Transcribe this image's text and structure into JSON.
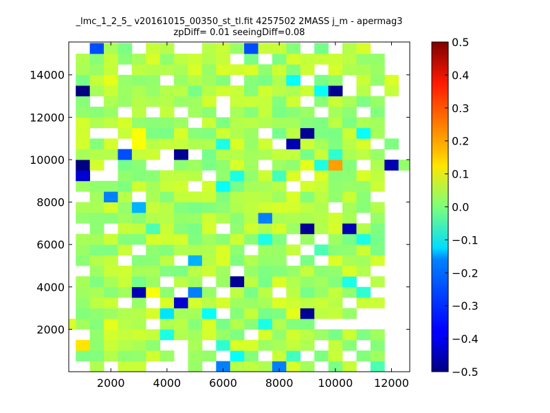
{
  "chart_data": {
    "type": "heatmap",
    "title_line1": "_lmc_1_2_5_ v20161015_00350_st_tl.fit 4257502 2MASS j_m - apermag3",
    "title_line2": "zpDiff= 0.01 seeingDiff=0.08",
    "xlabel": "",
    "ylabel": "",
    "xlim": [
      500,
      12650
    ],
    "ylim": [
      0,
      15550
    ],
    "x_ticks": [
      2000,
      4000,
      6000,
      8000,
      10000,
      12000
    ],
    "x_tick_labels": [
      "2000",
      "4000",
      "6000",
      "8000",
      "10000",
      "12000"
    ],
    "y_ticks": [
      2000,
      4000,
      6000,
      8000,
      10000,
      12000,
      14000
    ],
    "y_tick_labels": [
      "2000",
      "4000",
      "6000",
      "8000",
      "10000",
      "12000",
      "14000"
    ],
    "colormap": "jet",
    "clim": [
      -0.5,
      0.5
    ],
    "colorbar_ticks": [
      0.5,
      0.4,
      0.3,
      0.2,
      0.1,
      0.0,
      -0.1,
      -0.2,
      -0.3,
      -0.4,
      -0.5
    ],
    "colorbar_tick_labels": [
      "0.5",
      "0.4",
      "0.3",
      "0.2",
      "0.1",
      "0.0",
      "−0.1",
      "−0.2",
      "−0.3",
      "−0.4",
      "−0.5"
    ],
    "grid": false,
    "cell_size": 500,
    "background_value": 0.04,
    "missing_cells": [
      [
        500,
        15250
      ],
      [
        1000,
        15250
      ],
      [
        3000,
        15250
      ],
      [
        4500,
        15250
      ],
      [
        5000,
        15250
      ],
      [
        9000,
        15250
      ],
      [
        10000,
        15250
      ],
      [
        11500,
        15250
      ],
      [
        12000,
        15250
      ],
      [
        500,
        14750
      ],
      [
        6500,
        14750
      ],
      [
        7500,
        14750
      ],
      [
        12000,
        14750
      ],
      [
        500,
        14250
      ],
      [
        2500,
        14250
      ],
      [
        9500,
        14250
      ],
      [
        12000,
        14250
      ],
      [
        500,
        13750
      ],
      [
        4000,
        13750
      ],
      [
        6500,
        13750
      ],
      [
        9000,
        13750
      ],
      [
        10500,
        13750
      ],
      [
        500,
        13250
      ],
      [
        10500,
        13250
      ],
      [
        11500,
        13250
      ],
      [
        500,
        12750
      ],
      [
        1500,
        12750
      ],
      [
        6000,
        12750
      ],
      [
        9000,
        12750
      ],
      [
        12000,
        12750
      ],
      [
        500,
        12250
      ],
      [
        2500,
        12250
      ],
      [
        3500,
        12250
      ],
      [
        4500,
        12250
      ],
      [
        6000,
        12250
      ],
      [
        9500,
        12250
      ],
      [
        11000,
        12250
      ],
      [
        12000,
        12250
      ],
      [
        500,
        11750
      ],
      [
        5000,
        11750
      ],
      [
        12000,
        11750
      ],
      [
        500,
        11250
      ],
      [
        1500,
        11250
      ],
      [
        2000,
        11250
      ],
      [
        7500,
        11250
      ],
      [
        12000,
        11250
      ],
      [
        500,
        10750
      ],
      [
        2500,
        10750
      ],
      [
        8000,
        10750
      ],
      [
        11500,
        10750
      ],
      [
        500,
        10250
      ],
      [
        4000,
        10250
      ],
      [
        5000,
        10250
      ],
      [
        12000,
        10250
      ],
      [
        500,
        9750
      ],
      [
        2000,
        9750
      ],
      [
        3500,
        9750
      ],
      [
        4000,
        9750
      ],
      [
        7500,
        9750
      ],
      [
        11000,
        9750
      ],
      [
        500,
        9250
      ],
      [
        1500,
        9250
      ],
      [
        2000,
        9250
      ],
      [
        5500,
        9250
      ],
      [
        9000,
        9250
      ],
      [
        12000,
        9250
      ],
      [
        500,
        8750
      ],
      [
        5000,
        8750
      ],
      [
        8500,
        8750
      ],
      [
        12000,
        8750
      ],
      [
        500,
        8250
      ],
      [
        1000,
        8250
      ],
      [
        3000,
        8250
      ],
      [
        11500,
        8250
      ],
      [
        12000,
        8250
      ],
      [
        500,
        7750
      ],
      [
        10000,
        7750
      ],
      [
        12000,
        7750
      ],
      [
        500,
        7250
      ],
      [
        11000,
        7250
      ],
      [
        12000,
        7250
      ],
      [
        500,
        6750
      ],
      [
        1000,
        6750
      ],
      [
        2000,
        6750
      ],
      [
        6000,
        6750
      ],
      [
        12000,
        6750
      ],
      [
        500,
        6250
      ],
      [
        8500,
        6250
      ],
      [
        9500,
        6250
      ],
      [
        12000,
        6250
      ],
      [
        500,
        5750
      ],
      [
        3000,
        5750
      ],
      [
        7000,
        5750
      ],
      [
        9000,
        5750
      ],
      [
        12000,
        5750
      ],
      [
        500,
        5250
      ],
      [
        2500,
        5250
      ],
      [
        4500,
        5250
      ],
      [
        8500,
        5250
      ],
      [
        9500,
        5250
      ],
      [
        12000,
        5250
      ],
      [
        500,
        4750
      ],
      [
        1000,
        4750
      ],
      [
        6500,
        4750
      ],
      [
        11500,
        4750
      ],
      [
        12000,
        4750
      ],
      [
        500,
        4250
      ],
      [
        4000,
        4250
      ],
      [
        5500,
        4250
      ],
      [
        11000,
        4250
      ],
      [
        12000,
        4250
      ],
      [
        500,
        3750
      ],
      [
        4500,
        3750
      ],
      [
        6000,
        3750
      ],
      [
        8000,
        3750
      ],
      [
        11500,
        3750
      ],
      [
        12000,
        3750
      ],
      [
        500,
        3250
      ],
      [
        2500,
        3250
      ],
      [
        3500,
        3250
      ],
      [
        10500,
        3250
      ],
      [
        12000,
        3250
      ],
      [
        500,
        2750
      ],
      [
        6000,
        2750
      ],
      [
        11000,
        2750
      ],
      [
        11500,
        2750
      ],
      [
        12000,
        2750
      ],
      [
        3500,
        2250
      ],
      [
        9500,
        2250
      ],
      [
        10000,
        2250
      ],
      [
        10500,
        2250
      ],
      [
        11000,
        2250
      ],
      [
        11500,
        2250
      ],
      [
        12000,
        2250
      ],
      [
        500,
        1750
      ],
      [
        1000,
        1750
      ],
      [
        7000,
        1750
      ],
      [
        12000,
        1750
      ],
      [
        500,
        1250
      ],
      [
        4000,
        1250
      ],
      [
        4500,
        1250
      ],
      [
        5500,
        1250
      ],
      [
        9500,
        1250
      ],
      [
        11000,
        1250
      ],
      [
        12000,
        1250
      ],
      [
        500,
        750
      ],
      [
        4500,
        750
      ],
      [
        6000,
        750
      ],
      [
        7500,
        750
      ],
      [
        9000,
        750
      ],
      [
        10500,
        750
      ],
      [
        12000,
        750
      ],
      [
        500,
        250
      ],
      [
        1000,
        250
      ],
      [
        2000,
        250
      ],
      [
        3500,
        250
      ],
      [
        4000,
        250
      ],
      [
        4500,
        250
      ],
      [
        5500,
        250
      ],
      [
        9500,
        250
      ],
      [
        11000,
        250
      ],
      [
        12000,
        250
      ]
    ],
    "cells": [
      [
        1500,
        15250,
        -0.3
      ],
      [
        3000,
        15250,
        -0.15
      ],
      [
        7000,
        15250,
        -0.3
      ],
      [
        10000,
        15250,
        -0.1
      ],
      [
        500,
        14250,
        -0.02
      ],
      [
        2000,
        13750,
        0.1
      ],
      [
        6500,
        13250,
        0.07
      ],
      [
        1000,
        13250,
        -0.5
      ],
      [
        8500,
        13750,
        -0.12
      ],
      [
        9500,
        13250,
        -0.12
      ],
      [
        10000,
        13250,
        -0.48
      ],
      [
        10500,
        13250,
        0.12
      ],
      [
        3500,
        12250,
        0.08
      ],
      [
        9000,
        11250,
        -0.48
      ],
      [
        2500,
        11250,
        0.07
      ],
      [
        11000,
        11250,
        -0.12
      ],
      [
        3000,
        11250,
        0.12
      ],
      [
        3000,
        10750,
        0.12
      ],
      [
        6000,
        10750,
        -0.1
      ],
      [
        8500,
        10750,
        -0.45
      ],
      [
        2500,
        10250,
        -0.3
      ],
      [
        4500,
        10250,
        -0.48
      ],
      [
        10000,
        10250,
        -0.08
      ],
      [
        1000,
        9750,
        -0.5
      ],
      [
        4000,
        9750,
        -0.22
      ],
      [
        9000,
        9750,
        0.1
      ],
      [
        9500,
        9750,
        -0.1
      ],
      [
        10000,
        9750,
        0.22
      ],
      [
        12000,
        9750,
        -0.45
      ],
      [
        12500,
        9750,
        0.02
      ],
      [
        1000,
        9250,
        -0.42
      ],
      [
        5500,
        9250,
        -0.05
      ],
      [
        6500,
        9250,
        -0.1
      ],
      [
        8000,
        9250,
        -0.06
      ],
      [
        9000,
        9250,
        -0.1
      ],
      [
        6000,
        8750,
        -0.12
      ],
      [
        8500,
        8750,
        0.08
      ],
      [
        2000,
        8250,
        -0.25
      ],
      [
        3000,
        8250,
        0.12
      ],
      [
        3000,
        7750,
        -0.2
      ],
      [
        7500,
        7250,
        -0.25
      ],
      [
        9000,
        6750,
        -0.48
      ],
      [
        10500,
        6750,
        -0.45
      ],
      [
        3500,
        6750,
        -0.05
      ],
      [
        7500,
        6250,
        -0.1
      ],
      [
        11000,
        6250,
        -0.1
      ],
      [
        9500,
        5750,
        -0.05
      ],
      [
        5000,
        5250,
        -0.2
      ],
      [
        5500,
        4250,
        -0.05
      ],
      [
        6500,
        4250,
        -0.48
      ],
      [
        10500,
        4250,
        -0.1
      ],
      [
        3000,
        3750,
        -0.45
      ],
      [
        3500,
        3750,
        0.12
      ],
      [
        5000,
        3750,
        -0.25
      ],
      [
        11000,
        3750,
        -0.08
      ],
      [
        4500,
        3250,
        -0.42
      ],
      [
        10500,
        3250,
        -0.08
      ],
      [
        4000,
        2750,
        -0.15
      ],
      [
        5500,
        2750,
        -0.12
      ],
      [
        8500,
        2750,
        0.1
      ],
      [
        9000,
        2750,
        -0.48
      ],
      [
        2000,
        2250,
        0.1
      ],
      [
        7500,
        2250,
        -0.1
      ],
      [
        4000,
        1750,
        -0.1
      ],
      [
        1000,
        1250,
        0.15
      ],
      [
        6000,
        1250,
        -0.08
      ],
      [
        6500,
        750,
        -0.12
      ],
      [
        8500,
        750,
        -0.06
      ],
      [
        6000,
        250,
        -0.25
      ],
      [
        8000,
        250,
        -0.25
      ],
      [
        11500,
        250,
        -0.05
      ]
    ]
  }
}
